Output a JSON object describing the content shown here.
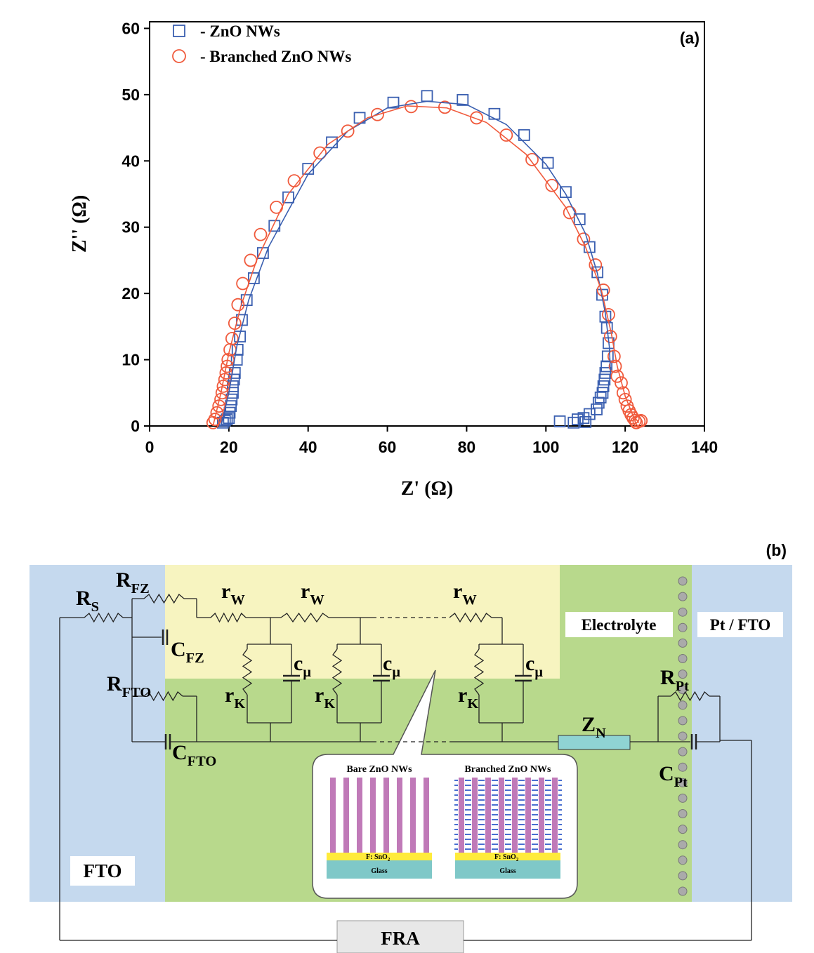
{
  "chart_data": {
    "type": "scatter",
    "x_label": "Z' (Ω)",
    "y_label": "Z'' (Ω)",
    "panel_label": "(a)",
    "xlim": [
      0,
      140
    ],
    "ylim": [
      0,
      61
    ],
    "xticks": [
      0,
      20,
      40,
      60,
      80,
      100,
      120,
      140
    ],
    "yticks": [
      0,
      10,
      20,
      30,
      40,
      50,
      60
    ],
    "legend": "top-left",
    "series": [
      {
        "name": "- ZnO NWs",
        "color": "#3a5fb0",
        "marker": "square",
        "x": [
          18.5,
          19,
          19.5,
          20,
          20.2,
          20.5,
          20.7,
          21,
          21,
          21.3,
          21.5,
          22,
          22.2,
          22.8,
          23.3,
          24.5,
          26.3,
          28.6,
          31.5,
          35,
          40,
          46,
          53,
          61.5,
          70,
          79,
          87,
          94.5,
          100.5,
          105,
          108.5,
          111,
          113,
          114.2,
          115,
          115.4,
          115.8,
          115.6,
          115.3,
          115,
          114.8,
          114.5,
          114.3,
          113.8,
          113.3,
          112.8,
          111,
          109.5,
          108,
          103.5,
          107,
          110
        ],
        "values": [
          0.5,
          0.8,
          1,
          1.2,
          2,
          3,
          4,
          5,
          6,
          7,
          8,
          10,
          11.5,
          13.5,
          16,
          19,
          22.3,
          26.1,
          30.2,
          34.5,
          38.8,
          42.8,
          46.5,
          48.8,
          49.8,
          49.2,
          47.1,
          43.9,
          39.7,
          35.3,
          31.2,
          27,
          23.2,
          19.8,
          16.5,
          14.8,
          12.5,
          10.5,
          9,
          8,
          7,
          6,
          5,
          4.3,
          3.5,
          2.5,
          1.8,
          1.2,
          1,
          0.7,
          0.5,
          0.6
        ]
      },
      {
        "name": "- Branched ZnO NWs",
        "color": "#f05a3c",
        "marker": "circle",
        "x": [
          16,
          16.5,
          17,
          17.5,
          18,
          18.3,
          18.6,
          19,
          19.3,
          19.6,
          19.8,
          20.3,
          20.8,
          21.5,
          22.3,
          23.5,
          25.5,
          28,
          32,
          36.5,
          43,
          50,
          57.5,
          66,
          74.5,
          82.5,
          90,
          96.5,
          101.5,
          106,
          109.5,
          112.5,
          114.5,
          115.8,
          116.3,
          117.2,
          117.5,
          118,
          119,
          119.5,
          120,
          120.5,
          121,
          121.5,
          122,
          122.5,
          123.5,
          124,
          122.8
        ],
        "values": [
          0.5,
          1,
          2,
          3,
          4,
          5,
          6,
          7,
          8,
          9,
          10,
          11.5,
          13.2,
          15.5,
          18.3,
          21.5,
          25,
          28.9,
          33,
          37,
          41.2,
          44.5,
          47,
          48.2,
          48.1,
          46.5,
          43.9,
          40.2,
          36.3,
          32.2,
          28.2,
          24.3,
          20.5,
          16.8,
          13.5,
          10.5,
          9,
          7.5,
          6.5,
          5,
          4,
          3,
          2.3,
          1.7,
          1.2,
          0.8,
          0.7,
          0.8,
          0.5
        ]
      },
      {
        "color": "#3a5fb0",
        "marker": "line",
        "x": [
          18,
          20,
          22,
          25,
          30,
          40,
          50,
          60,
          70,
          80,
          90,
          100,
          105,
          110,
          113,
          115,
          116,
          116.3
        ],
        "values": [
          0,
          5,
          12,
          19,
          27,
          38,
          44.5,
          48,
          49,
          48.5,
          45.5,
          39.5,
          35,
          29,
          23,
          17,
          12,
          8
        ]
      },
      {
        "color": "#f05a3c",
        "marker": "line",
        "x": [
          16,
          18,
          20,
          23,
          27,
          35,
          45,
          55,
          65,
          75,
          85,
          95,
          105,
          110,
          114,
          116.5,
          118,
          120,
          122,
          123.5
        ],
        "values": [
          0,
          5,
          11,
          18,
          25,
          35,
          42.5,
          46.5,
          48.3,
          48,
          45.8,
          41,
          33,
          27,
          20.5,
          14,
          9,
          4.5,
          1.5,
          0.5
        ]
      }
    ]
  },
  "diagram": {
    "panel_label": "(b)",
    "labels": [
      {
        "text": "R",
        "sub": "S"
      },
      {
        "text": "R",
        "sub": "FZ"
      },
      {
        "text": "r",
        "sub": "W"
      },
      {
        "text": "r",
        "sub": "W"
      },
      {
        "text": "r",
        "sub": "W"
      },
      {
        "text": "C",
        "sub": "FZ"
      },
      {
        "text": "c",
        "sub": "μ"
      },
      {
        "text": "c",
        "sub": "μ"
      },
      {
        "text": "c",
        "sub": "μ"
      },
      {
        "text": "R",
        "sub": "FTO"
      },
      {
        "text": "r",
        "sub": "K"
      },
      {
        "text": "r",
        "sub": "K"
      },
      {
        "text": "r",
        "sub": "K"
      },
      {
        "text": "C",
        "sub": "FTO"
      },
      {
        "text": "Z",
        "sub": "N"
      },
      {
        "text": "R",
        "sub": "Pt"
      },
      {
        "text": "C",
        "sub": "Pt"
      }
    ],
    "electrolyte": "Electrolyte",
    "counter": "Pt / FTO",
    "fto": "FTO",
    "fra": "FRA",
    "inset": {
      "left_title": "Bare ZnO NWs",
      "right_title": "Branched ZnO NWs",
      "layer": {
        "text": "F: SnO",
        "sub": "2"
      },
      "glass": "Glass"
    }
  }
}
